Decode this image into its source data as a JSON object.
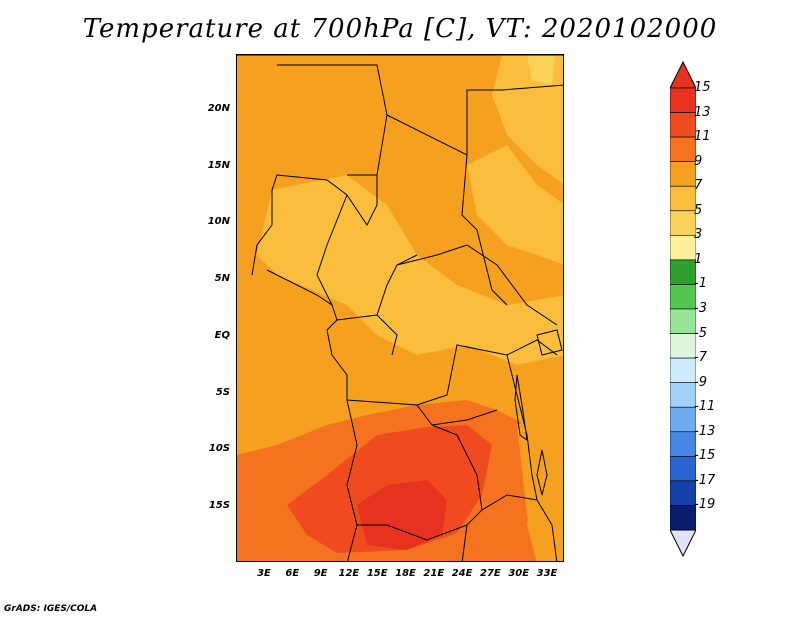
{
  "title": "Temperature at 700hPa [C], VT: 2020102000",
  "footer": "GrADS: IGES/COLA",
  "map": {
    "lat_labels": [
      "20N",
      "15N",
      "10N",
      "5N",
      "EQ",
      "5S",
      "10S",
      "15S"
    ],
    "lon_labels": [
      "3E",
      "6E",
      "9E",
      "12E",
      "15E",
      "18E",
      "21E",
      "24E",
      "27E",
      "30E",
      "33E"
    ]
  },
  "colorbar": {
    "labels": [
      "15",
      "13",
      "11",
      "9",
      "7",
      "5",
      "3",
      "1",
      "-1",
      "-3",
      "-5",
      "-7",
      "-9",
      "-11",
      "-13",
      "-15",
      "-17",
      "-19"
    ],
    "colors": [
      "#e6321e",
      "#f04b1e",
      "#f5731e",
      "#f5a01e",
      "#fabe3c",
      "#fad25a",
      "#fff09b",
      "#2da02d",
      "#50c850",
      "#96e696",
      "#dcf5dc",
      "#cdebff",
      "#a0d2fa",
      "#6eaaf0",
      "#4687e6",
      "#2864d2",
      "#1441aa",
      "#0a1e6e"
    ],
    "over_color": "#e6321e",
    "under_color": "#e1e1fa"
  }
}
